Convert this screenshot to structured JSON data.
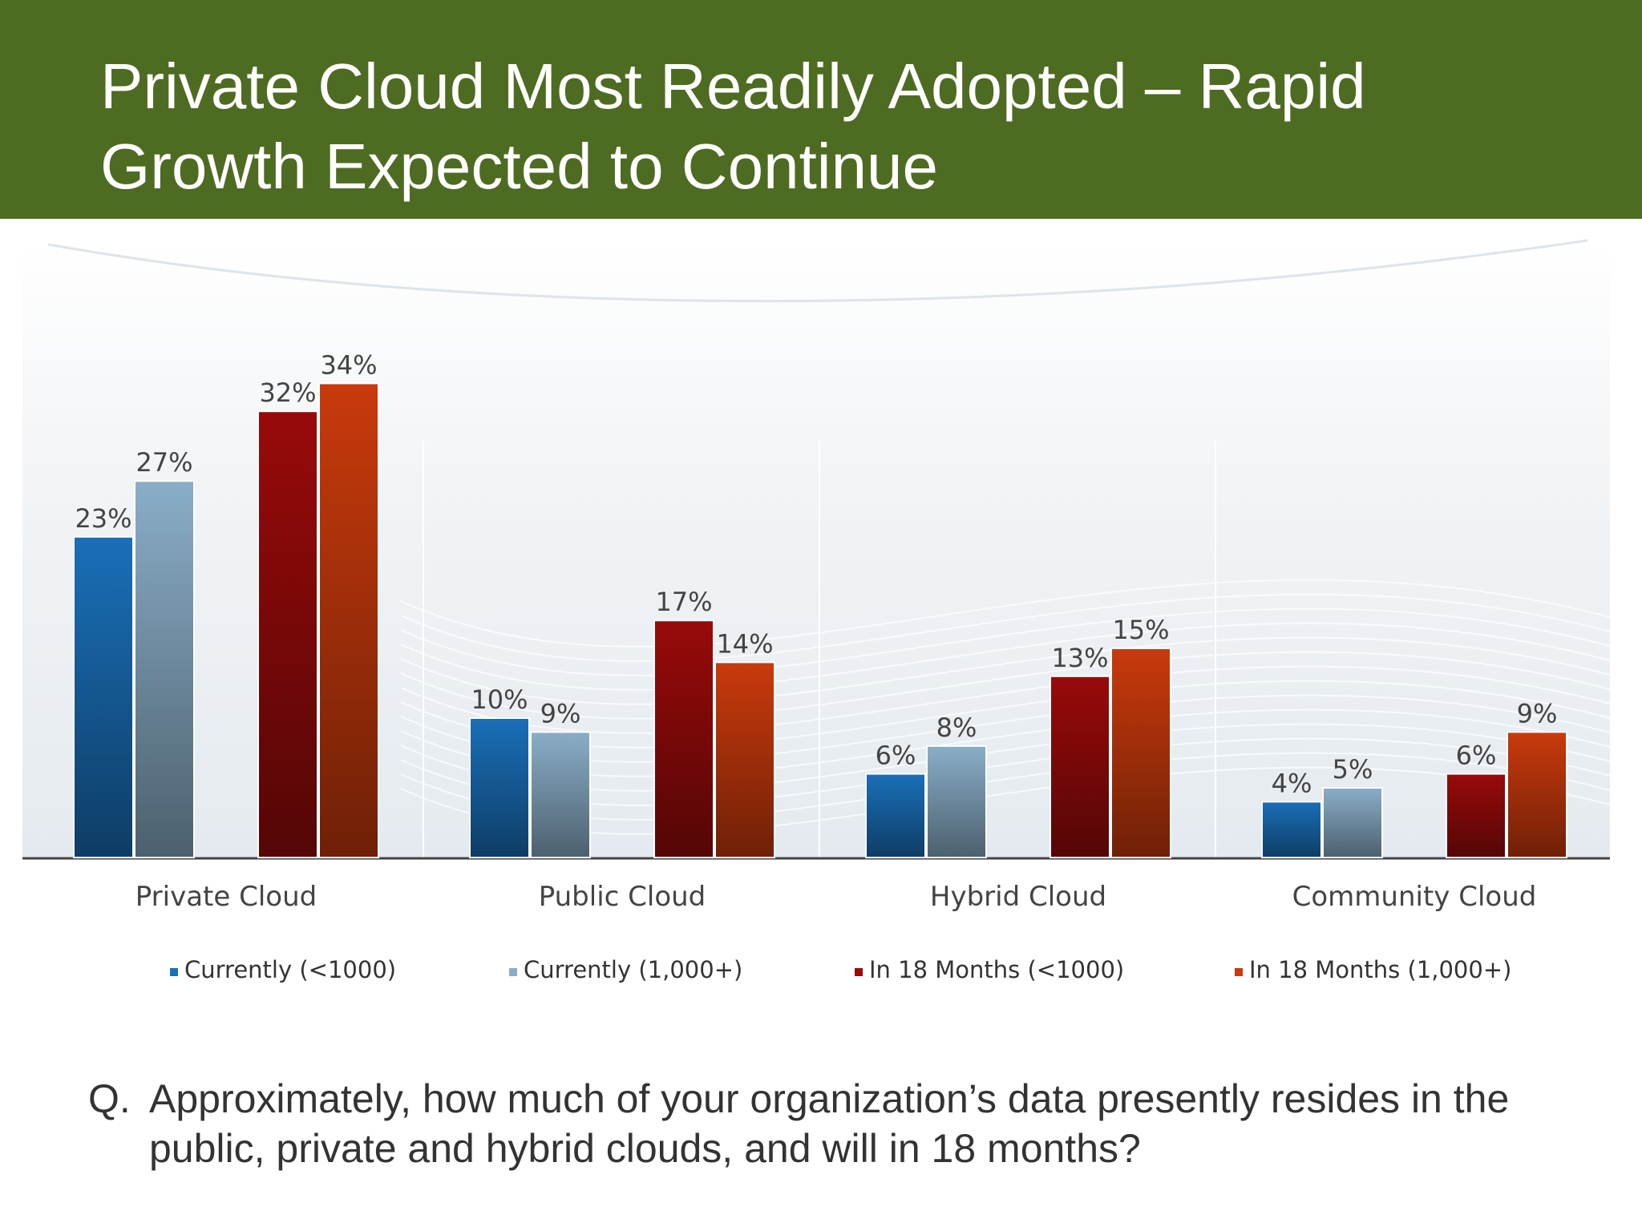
{
  "slide": {
    "title_line1": "Private Cloud Most Readily Adopted – Rapid",
    "title_line2": "Growth Expected to Continue",
    "title_bar_color": "#4e6b22",
    "question_marker": "Q.",
    "question_line1": "Approximately, how much of your organization’s data presently resides in the",
    "question_line2": "public, private and hybrid clouds, and will in 18 months?"
  },
  "chart_data": {
    "type": "bar",
    "categories": [
      "Private Cloud",
      "Public Cloud",
      "Hybrid Cloud",
      "Community Cloud"
    ],
    "series": [
      {
        "name": "Currently (<1000)",
        "values": [
          23,
          10,
          6,
          4
        ],
        "labels": [
          "23%",
          "10%",
          "6%",
          "4%"
        ],
        "color": "#1a6fb8"
      },
      {
        "name": "Currently (1,000+)",
        "values": [
          27,
          9,
          8,
          5
        ],
        "labels": [
          "27%",
          "9%",
          "8%",
          "5%"
        ],
        "color": "#8aaec8"
      },
      {
        "name": "In 18 Months (<1000)",
        "values": [
          32,
          17,
          13,
          6
        ],
        "labels": [
          "32%",
          "17%",
          "13%",
          "6%"
        ],
        "color": "#990a0a"
      },
      {
        "name": "In 18 Months (1,000+)",
        "values": [
          34,
          14,
          15,
          9
        ],
        "labels": [
          "34%",
          "14%",
          "15%",
          "9%"
        ],
        "color": "#c93a0c"
      }
    ],
    "ylim": [
      0,
      40
    ],
    "grid": false,
    "legend_position": "bottom"
  }
}
